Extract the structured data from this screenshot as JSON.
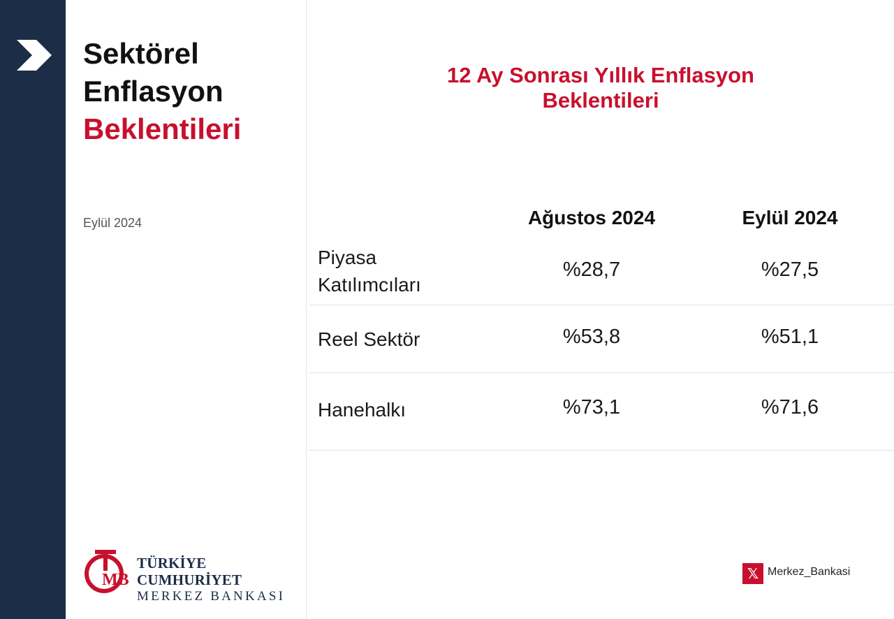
{
  "sidebar": {
    "title_line1": "Sektörel",
    "title_line2": "Enflasyon",
    "title_line3": "Beklentileri",
    "date": "Eylül 2024",
    "logo": {
      "line1": "TÜRKİYE CUMHURİYET",
      "line2": "MERKEZ BANKASI",
      "monogram": "TCMB"
    }
  },
  "main": {
    "title_line1": "12 Ay Sonrası Yıllık Enflasyon",
    "title_line2": "Beklentileri",
    "table": {
      "headers": [
        "Ağustos 2024",
        "Eylül 2024"
      ],
      "rows": [
        {
          "label_line1": "Piyasa",
          "label_line2": "Katılımcıları",
          "aug": "%28,7",
          "sep": "%27,5"
        },
        {
          "label": "Reel Sektör",
          "aug": "%53,8",
          "sep": "%51,1"
        },
        {
          "label": "Hanehalkı",
          "aug": "%73,1",
          "sep": "%71,6"
        }
      ]
    }
  },
  "footer": {
    "social_icon": "x-icon",
    "social_handle": "Merkez_Bankasi"
  },
  "colors": {
    "navy": "#1c2e47",
    "red": "#c8102e"
  }
}
